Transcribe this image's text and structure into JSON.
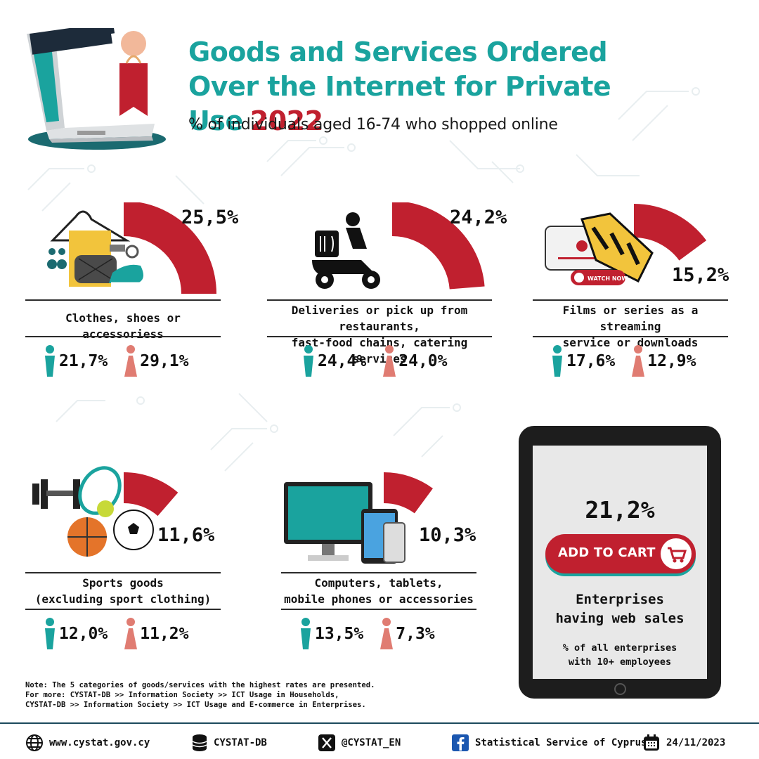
{
  "header": {
    "title_line1": "Goods and Services Ordered",
    "title_line2": "Over the Internet for Private Use",
    "year": "2022",
    "subtitle": "% of individuals aged 16-74 who shopped online",
    "illustration_icon": "laptop-shopping-bag-icon"
  },
  "colors": {
    "teal": "#1aa39e",
    "red": "#c0202f",
    "male": "#1aa39e",
    "female": "#e07c72"
  },
  "chart_data": {
    "type": "bar",
    "categories": [
      "Clothes, shoes or accessoriess",
      "Deliveries or pick up from restaurants, fast-food chains, catering services",
      "Films or series as a streaming service or downloads",
      "Sports goods (excluding sport clothing)",
      "Computers, tablets, mobile phones or accessories"
    ],
    "series": [
      {
        "values": [
          25.5,
          24.2,
          15.2,
          11.6,
          10.3
        ]
      },
      {
        "values": [
          21.7,
          24.4,
          17.6,
          12.0,
          13.5
        ]
      },
      {
        "values": [
          29.1,
          24.0,
          12.9,
          11.2,
          7.3
        ]
      }
    ]
  },
  "categories": [
    {
      "total": "25,5%",
      "value": 25.5,
      "label_lines": [
        "Clothes, shoes or accessoriess"
      ],
      "male": "21,7%",
      "female": "29,1%",
      "icon": "clothes-icon"
    },
    {
      "total": "24,2%",
      "value": 24.2,
      "label_lines": [
        "Deliveries or pick up from restaurants,",
        "fast-food chains, catering services"
      ],
      "male": "24,4%",
      "female": "24,0%",
      "icon": "delivery-scooter-icon"
    },
    {
      "total": "15,2%",
      "value": 15.2,
      "label_lines": [
        "Films or series as a streaming",
        "service or downloads"
      ],
      "male": "17,6%",
      "female": "12,9%",
      "icon": "film-streaming-icon",
      "watch_label": "WATCH NOW"
    },
    {
      "total": "11,6%",
      "value": 11.6,
      "label_lines": [
        "Sports goods",
        "(excluding sport clothing)"
      ],
      "male": "12,0%",
      "female": "11,2%",
      "icon": "sports-goods-icon"
    },
    {
      "total": "10,3%",
      "value": 10.3,
      "label_lines": [
        "Computers, tablets,",
        "mobile phones or accessories"
      ],
      "male": "13,5%",
      "female": "7,3%",
      "icon": "computer-devices-icon"
    }
  ],
  "enterprises": {
    "total": "21,2%",
    "button_label": "ADD TO CART",
    "title_lines": [
      "Enterprises",
      "having web sales"
    ],
    "sub_lines": [
      "% of all enterprises",
      "with 10+ employees"
    ]
  },
  "note": [
    "Note: The 5 categories of goods/services with the highest rates are presented.",
    "For more: CYSTAT-DB >> Information Society >> ICT Usage in Households,",
    "CYSTAT-DB >> Information Society >> ICT Usage and E-commerce in Enterprises."
  ],
  "footer": {
    "website": "www.cystat.gov.cy",
    "database": "CYSTAT-DB",
    "twitter": "@CYSTAT_EN",
    "facebook": "Statistical Service of Cyprus",
    "date": "24/11/2023"
  }
}
